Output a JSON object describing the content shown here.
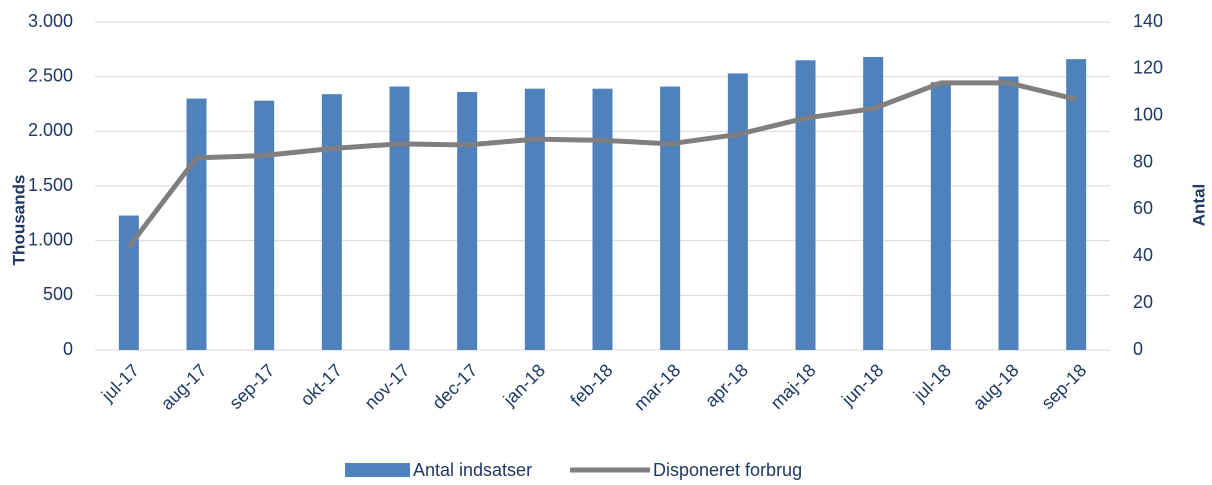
{
  "chart_data": {
    "type": "bar-line",
    "categories": [
      "jul-17",
      "aug-17",
      "sep-17",
      "okt-17",
      "nov-17",
      "dec-17",
      "jan-18",
      "feb-18",
      "mar-18",
      "apr-18",
      "maj-18",
      "jun-18",
      "jul-18",
      "aug-18",
      "sep-18"
    ],
    "series": [
      {
        "name": "Antal indsatser",
        "type": "bar",
        "color": "#4f81bd",
        "axis": "y",
        "values": [
          1230,
          2300,
          2280,
          2340,
          2410,
          2360,
          2390,
          2390,
          2410,
          2530,
          2650,
          2680,
          2450,
          2500,
          2660
        ]
      },
      {
        "name": "Disponeret forbrug",
        "type": "line",
        "color": "#7f7f7f",
        "axis": "y2",
        "values": [
          44,
          82,
          83,
          86,
          88,
          87.5,
          90,
          89.5,
          88,
          92,
          99,
          103,
          114,
          114,
          107
        ]
      }
    ],
    "ylabel": "Thousands",
    "y2label": "Antal",
    "ylim": [
      0,
      3000
    ],
    "yticks": [
      0,
      500,
      {
        "value": 1000,
        "label": "1.000"
      },
      {
        "value": 1500,
        "label": "1.500"
      },
      {
        "value": 2000,
        "label": "2.000"
      },
      {
        "value": 2500,
        "label": "2.500"
      },
      {
        "value": 3000,
        "label": "3.000"
      }
    ],
    "y2lim": [
      0,
      140
    ],
    "y2ticks": [
      0,
      20,
      40,
      60,
      80,
      100,
      120,
      140
    ],
    "grid": true,
    "legend": "bottom"
  }
}
